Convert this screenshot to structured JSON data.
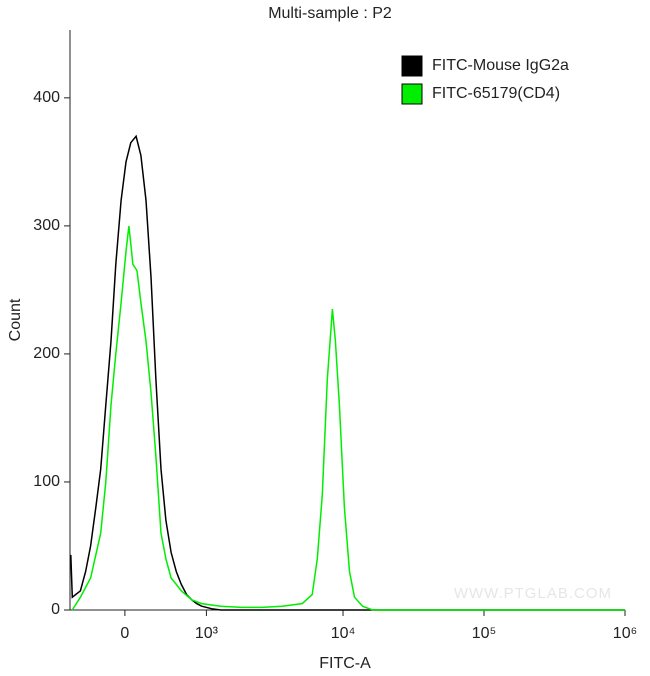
{
  "chart_data": {
    "type": "line",
    "title": "Multi-sample : P2",
    "xlabel": "FITC-A",
    "ylabel": "Count",
    "xscale": "biexponential",
    "xlim": [
      -580,
      1000000
    ],
    "xticks": [
      0,
      {
        "value": 1000,
        "label": "10³"
      },
      {
        "value": 10000,
        "label": "10⁴"
      },
      {
        "value": 100000,
        "label": "10⁵"
      },
      {
        "value": 1000000,
        "label": "10⁶"
      }
    ],
    "ylim": [
      0,
      453
    ],
    "yticks": [
      0,
      100,
      200,
      300,
      400
    ],
    "legend": "upper right",
    "annotation": "WWW.PTGLAB.COM",
    "series": [
      {
        "name": "FITC-Mouse IgG2a",
        "color": "#000000",
        "x": [
          -570,
          -550,
          -450,
          -390,
          -335,
          -280,
          -230,
          -180,
          -130,
          -85,
          -35,
          10,
          55,
          105,
          150,
          200,
          250,
          300,
          355,
          410,
          470,
          535,
          600,
          675,
          750,
          830,
          915,
          1100,
          1300,
          2000,
          5000,
          20000,
          100000,
          1000000
        ],
        "values": [
          43,
          10,
          15,
          30,
          50,
          80,
          110,
          160,
          210,
          270,
          320,
          350,
          365,
          370,
          355,
          320,
          260,
          180,
          110,
          70,
          45,
          30,
          20,
          12,
          8,
          5,
          3,
          1,
          0,
          0,
          0,
          0,
          0,
          0
        ]
      },
      {
        "name": "FITC-65179(CD4)",
        "color": "#00ee00",
        "x": [
          -550,
          -450,
          -335,
          -230,
          -180,
          -130,
          -85,
          -35,
          10,
          37,
          75,
          113,
          150,
          200,
          250,
          300,
          355,
          410,
          470,
          535,
          600,
          750,
          915,
          1300,
          1875,
          2630,
          3675,
          5120,
          6040,
          6560,
          7125,
          7735,
          8400,
          8820,
          9420,
          10230,
          11120,
          12070,
          13760,
          16220,
          100000,
          1000000
        ],
        "values": [
          0,
          10,
          25,
          60,
          100,
          160,
          200,
          240,
          280,
          300,
          270,
          265,
          240,
          210,
          170,
          120,
          60,
          40,
          25,
          20,
          15,
          8,
          5,
          3,
          2,
          2,
          3,
          5,
          12,
          40,
          90,
          180,
          235,
          210,
          160,
          80,
          30,
          10,
          3,
          0,
          0,
          0
        ]
      }
    ]
  }
}
